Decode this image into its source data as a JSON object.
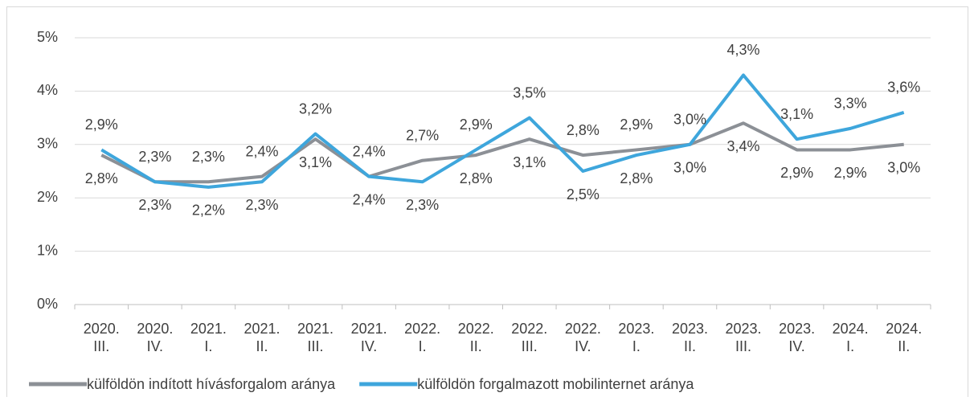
{
  "chart_data": {
    "type": "line",
    "categories": [
      [
        "2020.",
        "III."
      ],
      [
        "2020.",
        "IV."
      ],
      [
        "2021.",
        "I."
      ],
      [
        "2021.",
        "II."
      ],
      [
        "2021.",
        "III."
      ],
      [
        "2021.",
        "IV."
      ],
      [
        "2022.",
        "I."
      ],
      [
        "2022.",
        "II."
      ],
      [
        "2022.",
        "III."
      ],
      [
        "2022.",
        "IV."
      ],
      [
        "2023.",
        "I."
      ],
      [
        "2023.",
        "II."
      ],
      [
        "2023.",
        "III."
      ],
      [
        "2023.",
        "IV."
      ],
      [
        "2024.",
        "I."
      ],
      [
        "2024.",
        "II."
      ]
    ],
    "series": [
      {
        "name": "külföldön indított hívásforgalom aránya",
        "color": "#8c9096",
        "values": [
          2.8,
          2.3,
          2.3,
          2.4,
          3.1,
          2.4,
          2.7,
          2.8,
          3.1,
          2.8,
          2.9,
          3.0,
          3.4,
          2.9,
          2.9,
          3.0
        ],
        "value_labels": [
          "2,8%",
          "2,3%",
          "2,3%",
          "2,4%",
          "3,1%",
          "2,4%",
          "2,7%",
          "2,8%",
          "3,1%",
          "2,8%",
          "2,9%",
          "3,0%",
          "3,4%",
          "2,9%",
          "2,9%",
          "3,0%"
        ]
      },
      {
        "name": "külföldön forgalmazott mobilinternet aránya",
        "color": "#3ea6dc",
        "values": [
          2.9,
          2.3,
          2.2,
          2.3,
          3.2,
          2.4,
          2.3,
          2.9,
          3.5,
          2.5,
          2.8,
          3.0,
          4.3,
          3.1,
          3.3,
          3.6
        ],
        "value_labels": [
          "2,9%",
          "2,3%",
          "2,2%",
          "2,3%",
          "3,2%",
          "2,4%",
          "2,3%",
          "2,9%",
          "3,5%",
          "2,5%",
          "2,8%",
          "3,0%",
          "4,3%",
          "3,1%",
          "3,3%",
          "3,6%"
        ]
      }
    ],
    "ylim": [
      0,
      5
    ],
    "yticks": [
      {
        "value": 0,
        "label": "0%"
      },
      {
        "value": 1,
        "label": "1%"
      },
      {
        "value": 2,
        "label": "2%"
      },
      {
        "value": 3,
        "label": "3%"
      },
      {
        "value": 4,
        "label": "4%"
      },
      {
        "value": 5,
        "label": "5%"
      }
    ],
    "grid": true,
    "legend": "bottom"
  }
}
